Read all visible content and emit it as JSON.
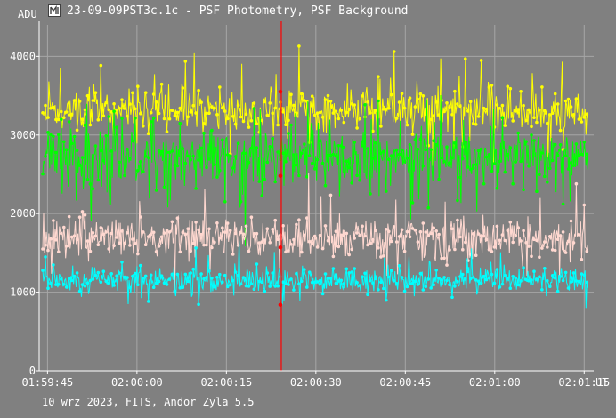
{
  "window": {
    "title": "23-09-09PST3c.1c - PSF Photometry, PSF Background",
    "icon": "app-logo-icon"
  },
  "footer": {
    "text": "10 wrz 2023, FITS, Andor Zyla 5.5"
  },
  "colors": {
    "background": "#808080",
    "grid": "#a6a6a6",
    "axis": "#ffffff",
    "cursor": "#ff0000",
    "series": [
      "#ffff00",
      "#00ff00",
      "#ffd8d0",
      "#00ffff"
    ]
  },
  "chart_data": {
    "type": "line",
    "ylabel": "ADU",
    "xlabel": "UT",
    "ylim": [
      0,
      4400
    ],
    "yticks": [
      0,
      1000,
      2000,
      3000,
      4000
    ],
    "ytick_labels": [
      "0",
      "1000",
      "2000",
      "3000",
      "4000"
    ],
    "xlim_seconds": [
      -16.4,
      76.6
    ],
    "xticks_seconds": [
      0,
      15,
      30,
      45,
      60,
      75
    ],
    "xtick_labels": [
      "01:59:45",
      "02:00:00",
      "02:00:15",
      "02:00:30",
      "02:00:45",
      "02:01:00",
      "02:01:15"
    ],
    "xtick_offsets": [
      -15,
      0,
      15,
      30,
      45,
      60,
      75
    ],
    "grid": true,
    "cursor_time": "02:00:24",
    "cursor_seconds": 24.2,
    "cursor_values": [
      3550,
      2480,
      1570,
      840
    ],
    "n_points": 620,
    "series": [
      {
        "color": "#ffff00",
        "mean": 3320,
        "noise": 180,
        "spike_prob": 0.07,
        "spike_amp": 600,
        "seed": 11
      },
      {
        "color": "#00ff00",
        "mean": 2720,
        "noise": 260,
        "spike_prob": 0.07,
        "spike_amp": 700,
        "seed": 23
      },
      {
        "color": "#ffd8d0",
        "mean": 1690,
        "noise": 170,
        "spike_prob": 0.06,
        "spike_amp": 520,
        "seed": 37
      },
      {
        "color": "#00ffff",
        "mean": 1160,
        "noise": 110,
        "spike_prob": 0.05,
        "spike_amp": 350,
        "seed": 53
      }
    ]
  }
}
